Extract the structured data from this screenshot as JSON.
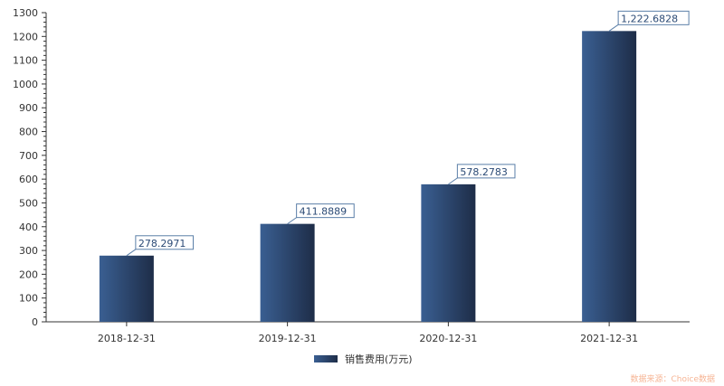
{
  "chart_data": {
    "type": "bar",
    "categories": [
      "2018-12-31",
      "2019-12-31",
      "2020-12-31",
      "2021-12-31"
    ],
    "series": [
      {
        "name": "销售费用(万元)",
        "values": [
          278.2971,
          411.8889,
          578.2783,
          1222.6828
        ]
      }
    ],
    "data_labels": [
      "278.2971",
      "411.8889",
      "578.2783",
      "1,222.6828"
    ],
    "yticks": [
      0,
      100,
      200,
      300,
      400,
      500,
      600,
      700,
      800,
      900,
      1000,
      1100,
      1200,
      1300
    ],
    "ylim": [
      0,
      1300
    ],
    "grid": false,
    "legend": "bottom-center",
    "colors": {
      "bar_light": "#3a5f92",
      "bar_dark": "#1e2d48",
      "label_border": "#5b7fa8"
    }
  },
  "source": "数据来源：Choice数据"
}
